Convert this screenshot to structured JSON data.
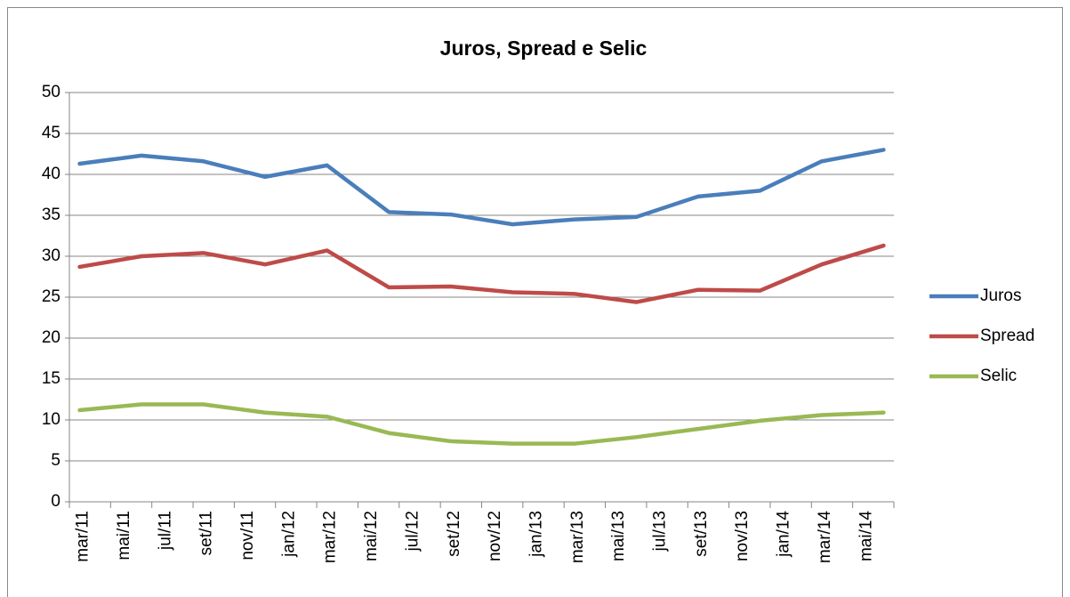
{
  "chart_data": {
    "type": "line",
    "title": "Juros, Spread e Selic",
    "categories": [
      "mar/11",
      null,
      "mai/11",
      null,
      "jul/11",
      null,
      "set/11",
      null,
      "nov/11",
      null,
      "jan/12",
      null,
      "mar/12",
      null,
      "mai/12",
      null,
      "jul/12",
      null,
      "set/12",
      null,
      "nov/12",
      null,
      "jan/13",
      null,
      "mar/13",
      null,
      "mai/13",
      null,
      "jul/13",
      null,
      "set/13",
      null,
      "nov/13",
      null,
      "jan/14",
      null,
      "mar/14",
      null,
      "mai/14",
      null
    ],
    "series": [
      {
        "name": "Juros",
        "color": "#4a7ebb",
        "values": [
          41.3,
          null,
          null,
          42.3,
          null,
          null,
          41.6,
          null,
          null,
          39.7,
          null,
          null,
          41.1,
          null,
          null,
          35.4,
          null,
          null,
          35.1,
          null,
          null,
          33.9,
          null,
          null,
          34.5,
          null,
          null,
          34.8,
          null,
          null,
          37.3,
          null,
          null,
          38.0,
          null,
          null,
          41.6,
          null,
          null,
          43.0
        ]
      },
      {
        "name": "Spread",
        "color": "#be4b48",
        "values": [
          28.7,
          null,
          null,
          30.0,
          null,
          null,
          30.4,
          null,
          null,
          29.0,
          null,
          null,
          30.7,
          null,
          null,
          26.2,
          null,
          null,
          26.3,
          null,
          null,
          25.6,
          null,
          null,
          25.4,
          null,
          null,
          24.4,
          null,
          null,
          25.9,
          null,
          null,
          25.8,
          null,
          null,
          29.0,
          null,
          null,
          31.3
        ]
      },
      {
        "name": "Selic",
        "color": "#98b954",
        "values": [
          11.2,
          null,
          null,
          11.9,
          null,
          null,
          11.9,
          null,
          null,
          10.9,
          null,
          null,
          10.4,
          null,
          null,
          8.4,
          null,
          null,
          7.4,
          null,
          null,
          7.1,
          null,
          null,
          7.1,
          null,
          null,
          7.9,
          null,
          null,
          8.9,
          null,
          null,
          9.9,
          null,
          null,
          10.6,
          null,
          null,
          10.9
        ]
      }
    ],
    "connect_gaps": true,
    "ylim": [
      0,
      50
    ],
    "yticks": [
      0,
      5,
      10,
      15,
      20,
      25,
      30,
      35,
      40,
      45,
      50
    ],
    "grid": true,
    "legend": "right"
  }
}
